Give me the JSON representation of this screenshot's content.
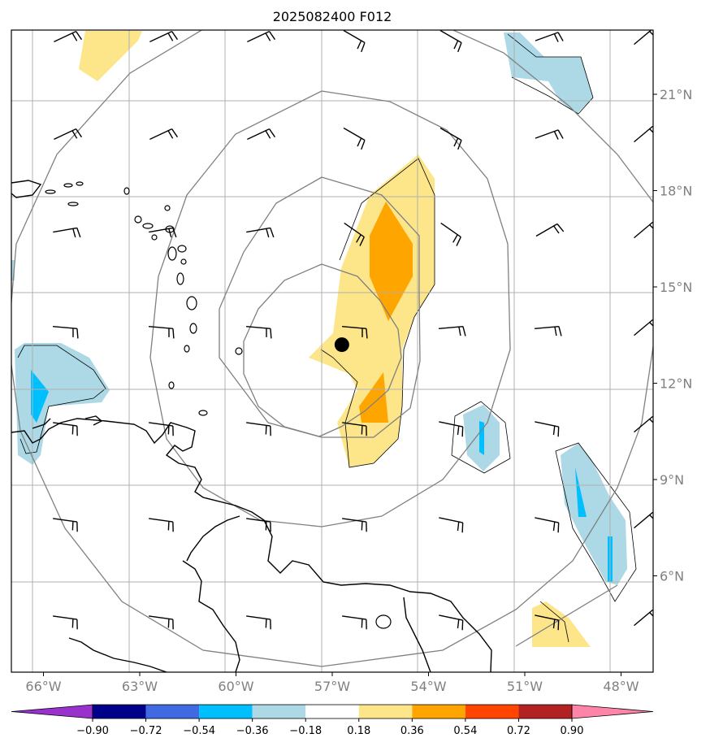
{
  "title": "2025082400 F012",
  "map": {
    "lon_range": [
      -67,
      -47
    ],
    "lat_range": [
      3,
      23
    ],
    "lon_ticks": [
      {
        "value": -66,
        "label": "66°W"
      },
      {
        "value": -63,
        "label": "63°W"
      },
      {
        "value": -60,
        "label": "60°W"
      },
      {
        "value": -57,
        "label": "57°W"
      },
      {
        "value": -54,
        "label": "54°W"
      },
      {
        "value": -51,
        "label": "51°W"
      },
      {
        "value": -48,
        "label": "48°W"
      }
    ],
    "lat_ticks": [
      {
        "value": 21,
        "label": "21°N"
      },
      {
        "value": 18,
        "label": "18°N"
      },
      {
        "value": 15,
        "label": "15°N"
      },
      {
        "value": 12,
        "label": "12°N"
      },
      {
        "value": 9,
        "label": "9°N"
      },
      {
        "value": 6,
        "label": "6°N"
      }
    ],
    "center_marker": {
      "lon": -56.7,
      "lat": 13.2
    },
    "range_rings_deg": [
      3,
      6,
      9,
      12
    ]
  },
  "colorbar": {
    "levels": [
      "−0.90",
      "−0.72",
      "−0.54",
      "−0.36",
      "−0.18",
      "0.18",
      "0.36",
      "0.54",
      "0.72",
      "0.90"
    ],
    "colors": [
      "#9932cc",
      "#00008b",
      "#4169e1",
      "#00bfff",
      "#add8e6",
      "#ffffff",
      "#fde68a",
      "#ffa500",
      "#ff4500",
      "#b22222",
      "#ff85a8"
    ]
  }
}
